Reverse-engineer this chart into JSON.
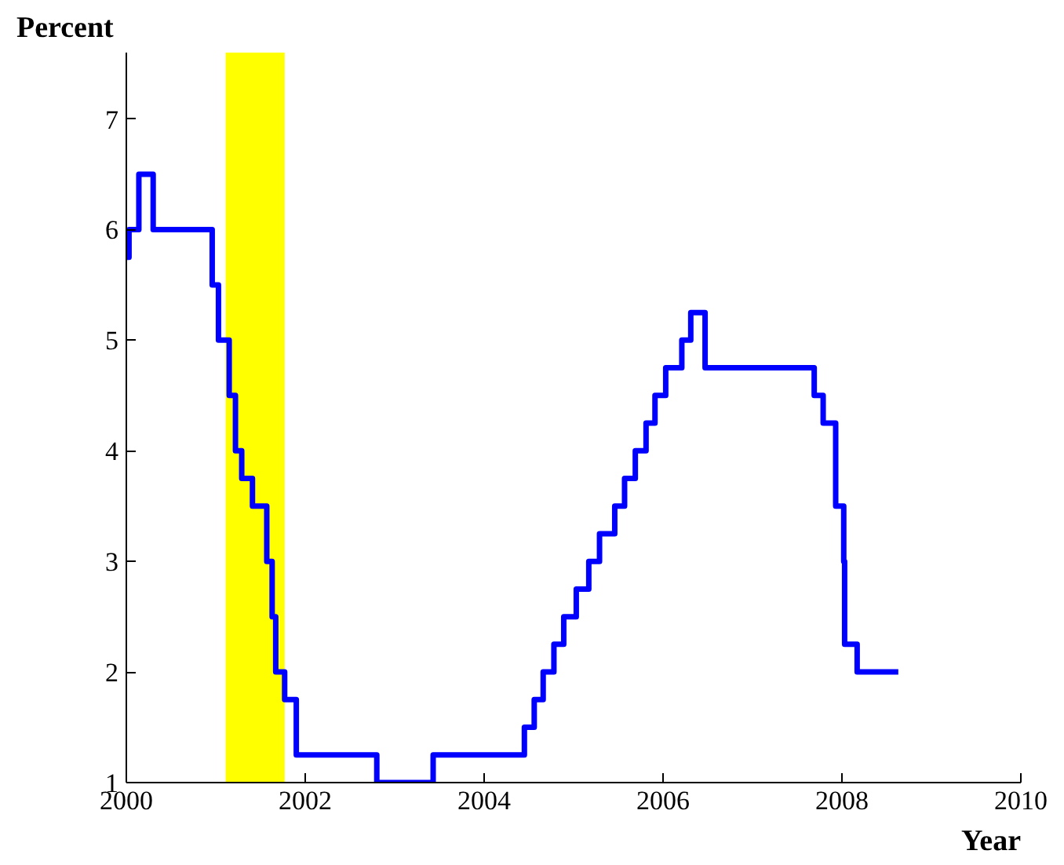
{
  "chart_data": {
    "type": "step",
    "xlabel": "Year",
    "ylabel": "Percent",
    "x": [
      2000.0,
      2000.03,
      2000.14,
      2000.3,
      2000.96,
      2001.03,
      2001.15,
      2001.22,
      2001.29,
      2001.41,
      2001.57,
      2001.63,
      2001.67,
      2001.77,
      2001.9,
      2002.8,
      2003.43,
      2004.45,
      2004.56,
      2004.66,
      2004.78,
      2004.89,
      2005.03,
      2005.17,
      2005.29,
      2005.46,
      2005.57,
      2005.69,
      2005.81,
      2005.91,
      2006.03,
      2006.21,
      2006.31,
      2006.47,
      2007.69,
      2007.79,
      2007.93,
      2008.02,
      2008.03,
      2008.17,
      2008.63
    ],
    "series": [
      {
        "color": "#0000ff",
        "values": [
          5.75,
          6.0,
          6.5,
          6.0,
          5.5,
          5.0,
          4.5,
          4.0,
          3.75,
          3.5,
          3.0,
          2.5,
          2.0,
          1.75,
          1.25,
          1.0,
          1.25,
          1.5,
          1.75,
          2.0,
          2.25,
          2.5,
          2.75,
          3.0,
          3.25,
          3.5,
          3.75,
          4.0,
          4.25,
          4.5,
          4.75,
          5.0,
          5.25,
          4.75,
          4.5,
          4.25,
          3.5,
          3.0,
          2.25,
          2.0,
          2.0
        ]
      }
    ],
    "bands": [
      {
        "axis": "x",
        "from": 2001.11,
        "to": 2001.77,
        "label": null,
        "color": "#ffff00"
      }
    ],
    "xlim": [
      2000,
      2010
    ],
    "xticks": [
      2000,
      2002,
      2004,
      2006,
      2008,
      2010
    ],
    "ylim": [
      1,
      7.6
    ],
    "yticks": [
      1,
      2,
      3,
      4,
      5,
      6,
      7
    ],
    "grid": false,
    "marker": "none",
    "line_style": "solid"
  }
}
